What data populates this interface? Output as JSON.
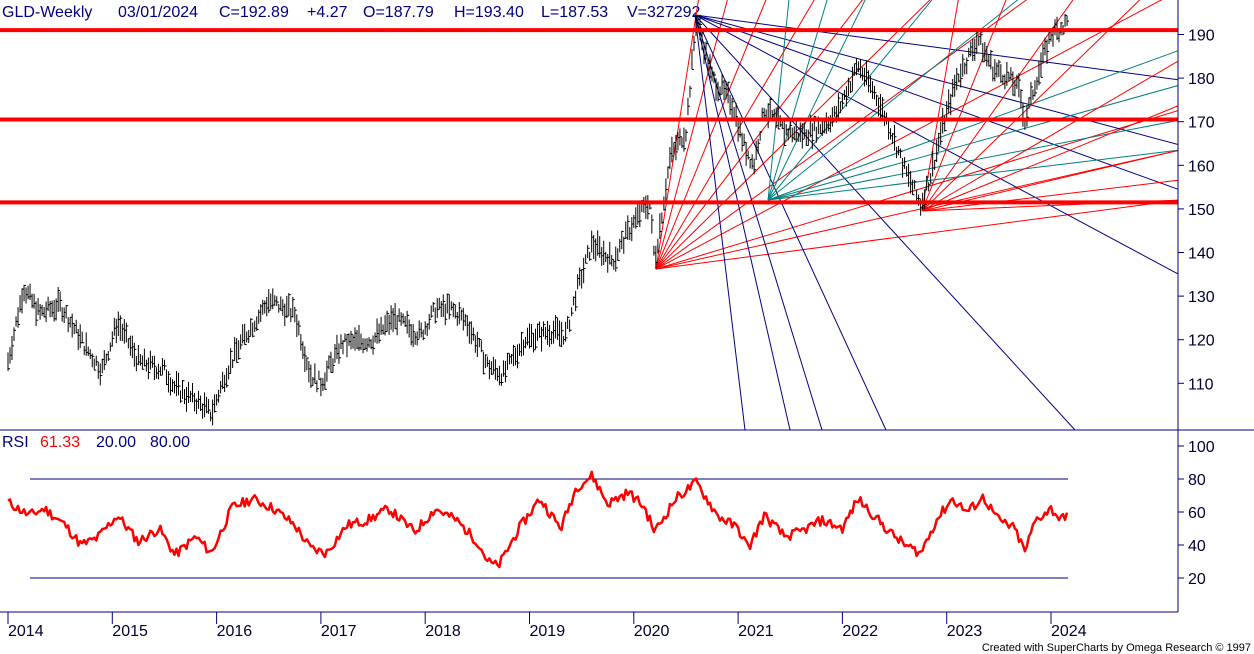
{
  "header": {
    "symbol": "GLD-Weekly",
    "date": "03/01/2024",
    "close": "C=192.89",
    "change": "+4.27",
    "open": "O=187.79",
    "high": "H=193.40",
    "low": "L=187.53",
    "volume": "V=327292"
  },
  "rsi_header": {
    "label": "RSI",
    "value": "61.33",
    "lower": "20.00",
    "upper": "80.00"
  },
  "credit": "Created with SuperCharts by Omega Research © 1997",
  "colors": {
    "price_bars": "#000000",
    "support_lines": "#ff0000",
    "rsi_line": "#ff0000",
    "rsi_bands": "#000080",
    "fan_red": "#ff0000",
    "fan_blue": "#000080",
    "fan_teal": "#008080",
    "axis": "#000080",
    "header_text": "#000080"
  },
  "chart_data": [
    {
      "type": "ohlc",
      "title": "GLD-Weekly",
      "x_ticks": [
        "2014",
        "2015",
        "2016",
        "2017",
        "2018",
        "2019",
        "2020",
        "2021",
        "2022",
        "2023",
        "2024"
      ],
      "y_ticks": [
        110,
        120,
        130,
        140,
        150,
        160,
        170,
        180,
        190
      ],
      "ylim": [
        100,
        197
      ],
      "horizontal_levels": [
        191,
        170.5,
        151.5
      ],
      "price_path": [
        {
          "x": 2014.0,
          "y": 115
        },
        {
          "x": 2014.15,
          "y": 132
        },
        {
          "x": 2014.3,
          "y": 126
        },
        {
          "x": 2014.5,
          "y": 128
        },
        {
          "x": 2014.75,
          "y": 118
        },
        {
          "x": 2014.9,
          "y": 113
        },
        {
          "x": 2015.05,
          "y": 124
        },
        {
          "x": 2015.25,
          "y": 115
        },
        {
          "x": 2015.5,
          "y": 113
        },
        {
          "x": 2015.6,
          "y": 109
        },
        {
          "x": 2015.8,
          "y": 106
        },
        {
          "x": 2015.95,
          "y": 103
        },
        {
          "x": 2016.1,
          "y": 113
        },
        {
          "x": 2016.25,
          "y": 120
        },
        {
          "x": 2016.5,
          "y": 129
        },
        {
          "x": 2016.75,
          "y": 126
        },
        {
          "x": 2016.9,
          "y": 112
        },
        {
          "x": 2017.0,
          "y": 110
        },
        {
          "x": 2017.2,
          "y": 119
        },
        {
          "x": 2017.5,
          "y": 120
        },
        {
          "x": 2017.7,
          "y": 125
        },
        {
          "x": 2017.95,
          "y": 121
        },
        {
          "x": 2018.1,
          "y": 127
        },
        {
          "x": 2018.25,
          "y": 127
        },
        {
          "x": 2018.4,
          "y": 124
        },
        {
          "x": 2018.6,
          "y": 114
        },
        {
          "x": 2018.75,
          "y": 112
        },
        {
          "x": 2018.95,
          "y": 120
        },
        {
          "x": 2019.2,
          "y": 122
        },
        {
          "x": 2019.35,
          "y": 121
        },
        {
          "x": 2019.45,
          "y": 131
        },
        {
          "x": 2019.6,
          "y": 142
        },
        {
          "x": 2019.8,
          "y": 138
        },
        {
          "x": 2019.95,
          "y": 145
        },
        {
          "x": 2020.15,
          "y": 152
        },
        {
          "x": 2020.2,
          "y": 138
        },
        {
          "x": 2020.35,
          "y": 162
        },
        {
          "x": 2020.5,
          "y": 168
        },
        {
          "x": 2020.6,
          "y": 194
        },
        {
          "x": 2020.75,
          "y": 180
        },
        {
          "x": 2020.95,
          "y": 174
        },
        {
          "x": 2021.05,
          "y": 165
        },
        {
          "x": 2021.15,
          "y": 160
        },
        {
          "x": 2021.25,
          "y": 173
        },
        {
          "x": 2021.45,
          "y": 168
        },
        {
          "x": 2021.6,
          "y": 167
        },
        {
          "x": 2021.8,
          "y": 169
        },
        {
          "x": 2021.95,
          "y": 172
        },
        {
          "x": 2022.15,
          "y": 183
        },
        {
          "x": 2022.3,
          "y": 177
        },
        {
          "x": 2022.45,
          "y": 169
        },
        {
          "x": 2022.6,
          "y": 159
        },
        {
          "x": 2022.75,
          "y": 151
        },
        {
          "x": 2022.85,
          "y": 158
        },
        {
          "x": 2022.95,
          "y": 168
        },
        {
          "x": 2023.1,
          "y": 180
        },
        {
          "x": 2023.3,
          "y": 189
        },
        {
          "x": 2023.45,
          "y": 182
        },
        {
          "x": 2023.6,
          "y": 180
        },
        {
          "x": 2023.7,
          "y": 177
        },
        {
          "x": 2023.75,
          "y": 170
        },
        {
          "x": 2023.85,
          "y": 179
        },
        {
          "x": 2024.0,
          "y": 190
        },
        {
          "x": 2024.17,
          "y": 193
        }
      ]
    },
    {
      "type": "line",
      "title": "RSI",
      "series": [
        {
          "name": "RSI",
          "values": []
        }
      ],
      "x_ticks": [
        "2014",
        "2015",
        "2016",
        "2017",
        "2018",
        "2019",
        "2020",
        "2021",
        "2022",
        "2023",
        "2024"
      ],
      "y_ticks": [
        20,
        40,
        60,
        80,
        100
      ],
      "ylim": [
        0,
        110
      ],
      "bands": [
        20,
        80
      ],
      "rsi_path": [
        {
          "x": 2014.0,
          "y": 66
        },
        {
          "x": 2014.2,
          "y": 58
        },
        {
          "x": 2014.35,
          "y": 62
        },
        {
          "x": 2014.55,
          "y": 52
        },
        {
          "x": 2014.7,
          "y": 40
        },
        {
          "x": 2014.85,
          "y": 44
        },
        {
          "x": 2015.05,
          "y": 58
        },
        {
          "x": 2015.25,
          "y": 42
        },
        {
          "x": 2015.45,
          "y": 50
        },
        {
          "x": 2015.6,
          "y": 34
        },
        {
          "x": 2015.8,
          "y": 45
        },
        {
          "x": 2015.95,
          "y": 35
        },
        {
          "x": 2016.15,
          "y": 63
        },
        {
          "x": 2016.35,
          "y": 68
        },
        {
          "x": 2016.55,
          "y": 62
        },
        {
          "x": 2016.75,
          "y": 52
        },
        {
          "x": 2016.9,
          "y": 38
        },
        {
          "x": 2017.05,
          "y": 35
        },
        {
          "x": 2017.25,
          "y": 52
        },
        {
          "x": 2017.45,
          "y": 55
        },
        {
          "x": 2017.65,
          "y": 62
        },
        {
          "x": 2017.9,
          "y": 48
        },
        {
          "x": 2018.1,
          "y": 62
        },
        {
          "x": 2018.3,
          "y": 55
        },
        {
          "x": 2018.5,
          "y": 42
        },
        {
          "x": 2018.6,
          "y": 30
        },
        {
          "x": 2018.7,
          "y": 27
        },
        {
          "x": 2018.9,
          "y": 50
        },
        {
          "x": 2019.1,
          "y": 68
        },
        {
          "x": 2019.3,
          "y": 50
        },
        {
          "x": 2019.45,
          "y": 75
        },
        {
          "x": 2019.6,
          "y": 82
        },
        {
          "x": 2019.75,
          "y": 65
        },
        {
          "x": 2019.95,
          "y": 72
        },
        {
          "x": 2020.1,
          "y": 63
        },
        {
          "x": 2020.2,
          "y": 48
        },
        {
          "x": 2020.4,
          "y": 68
        },
        {
          "x": 2020.6,
          "y": 78
        },
        {
          "x": 2020.8,
          "y": 58
        },
        {
          "x": 2021.0,
          "y": 50
        },
        {
          "x": 2021.1,
          "y": 38
        },
        {
          "x": 2021.25,
          "y": 58
        },
        {
          "x": 2021.45,
          "y": 45
        },
        {
          "x": 2021.6,
          "y": 48
        },
        {
          "x": 2021.8,
          "y": 55
        },
        {
          "x": 2022.0,
          "y": 50
        },
        {
          "x": 2022.15,
          "y": 68
        },
        {
          "x": 2022.3,
          "y": 58
        },
        {
          "x": 2022.45,
          "y": 48
        },
        {
          "x": 2022.6,
          "y": 40
        },
        {
          "x": 2022.75,
          "y": 35
        },
        {
          "x": 2022.9,
          "y": 55
        },
        {
          "x": 2023.05,
          "y": 68
        },
        {
          "x": 2023.2,
          "y": 60
        },
        {
          "x": 2023.35,
          "y": 69
        },
        {
          "x": 2023.5,
          "y": 55
        },
        {
          "x": 2023.65,
          "y": 50
        },
        {
          "x": 2023.75,
          "y": 36
        },
        {
          "x": 2023.85,
          "y": 55
        },
        {
          "x": 2024.0,
          "y": 62
        },
        {
          "x": 2024.1,
          "y": 55
        },
        {
          "x": 2024.17,
          "y": 61
        }
      ]
    }
  ]
}
